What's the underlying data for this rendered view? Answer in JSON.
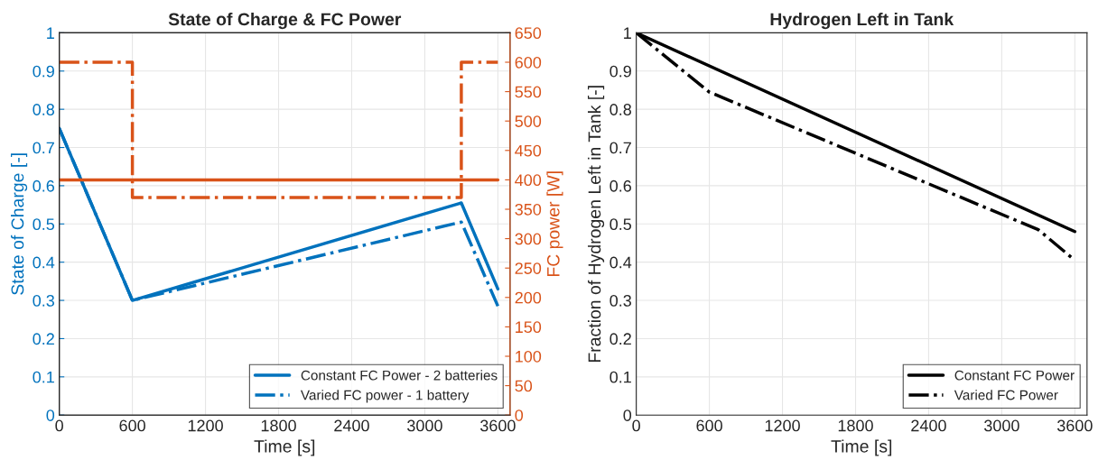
{
  "chart_data": [
    {
      "type": "line",
      "title": "State of Charge & FC Power",
      "xlabel": "Time [s]",
      "ylabel": "State of Charge [-]",
      "y2label": "FC power [W]",
      "xlim": [
        0,
        3700
      ],
      "xticks": [
        0,
        600,
        1200,
        1800,
        2400,
        3000,
        3600
      ],
      "ylim": [
        0,
        1
      ],
      "yticks": [
        0,
        0.1,
        0.2,
        0.3,
        0.4,
        0.5,
        0.6,
        0.7,
        0.8,
        0.9,
        1
      ],
      "y2lim": [
        0,
        650
      ],
      "y2ticks": [
        0,
        50,
        100,
        150,
        200,
        250,
        300,
        350,
        400,
        450,
        500,
        550,
        600,
        650
      ],
      "grid": true,
      "legend": "bottom right",
      "series": [
        {
          "name": "Constant FC Power - 2 batteries",
          "color": "#0072bd",
          "line_style": "solid",
          "x": [
            0,
            600,
            3300,
            3600
          ],
          "values": [
            0.75,
            0.3,
            0.555,
            0.33
          ]
        },
        {
          "name": "Varied FC power - 1 battery",
          "color": "#0072bd",
          "line_style": "dashdot",
          "x": [
            0,
            600,
            3300,
            3600
          ],
          "values": [
            0.75,
            0.3,
            0.505,
            0.285
          ]
        },
        {
          "type": "line",
          "axis": "y2",
          "color": "#d95319",
          "line_style": "solid",
          "x": [
            0,
            3600
          ],
          "values": [
            400,
            400
          ]
        },
        {
          "type": "step",
          "axis": "y2",
          "color": "#d95319",
          "line_style": "dashdot",
          "x": [
            0,
            600,
            3300,
            3600
          ],
          "values": [
            600,
            370,
            600,
            600
          ]
        }
      ]
    },
    {
      "type": "line",
      "title": "Hydrogen Left in Tank",
      "xlabel": "Time [s]",
      "ylabel": "Fraction of Hydrogen Left in Tank [-]",
      "xlim": [
        0,
        3700
      ],
      "xticks": [
        0,
        600,
        1200,
        1800,
        2400,
        3000,
        3600
      ],
      "ylim": [
        0,
        1
      ],
      "yticks": [
        0,
        0.1,
        0.2,
        0.3,
        0.4,
        0.5,
        0.6,
        0.7,
        0.8,
        0.9,
        1
      ],
      "grid": true,
      "legend": "bottom right",
      "series": [
        {
          "name": "Constant FC Power",
          "color": "#000000",
          "line_style": "solid",
          "x": [
            0,
            3600
          ],
          "values": [
            1,
            0.48
          ]
        },
        {
          "name": "Varied FC Power",
          "color": "#000000",
          "line_style": "dashdot",
          "x": [
            0,
            600,
            3300,
            3600
          ],
          "values": [
            1,
            0.845,
            0.485,
            0.405
          ]
        }
      ]
    }
  ]
}
